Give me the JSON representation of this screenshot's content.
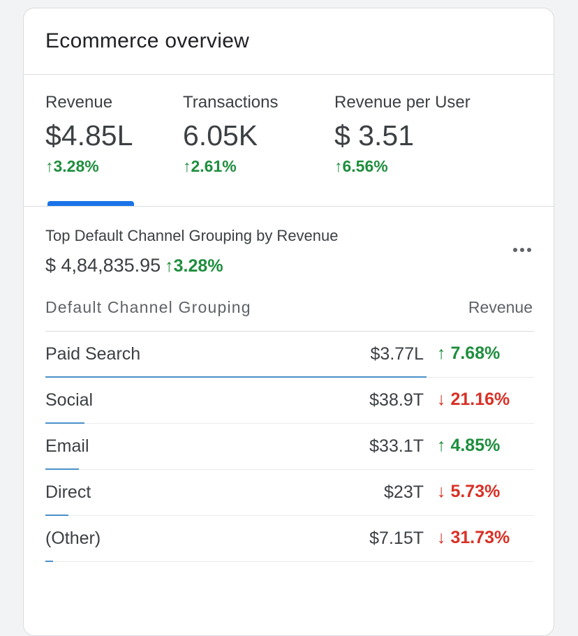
{
  "card": {
    "title": "Ecommerce overview"
  },
  "kpis": [
    {
      "label": "Revenue",
      "value": "$4.85L",
      "change": "3.28%",
      "direction": "up",
      "selected": true
    },
    {
      "label": "Transactions",
      "value": "6.05K",
      "change": "2.61%",
      "direction": "up"
    },
    {
      "label": "Revenue per User",
      "value": "$ 3.51",
      "change": "6.56%",
      "direction": "up"
    }
  ],
  "detail": {
    "title": "Top Default Channel Grouping by Revenue",
    "total": "$ 4,84,835.95",
    "total_change": "3.28%",
    "total_direction": "up",
    "more_icon": "more-horizontal-icon"
  },
  "table": {
    "col_left": "Default Channel Grouping",
    "col_right": "Revenue",
    "rows": [
      {
        "name": "Paid Search",
        "value": "$3.77L",
        "change": "7.68%",
        "direction": "up",
        "share": 0.78
      },
      {
        "name": "Social",
        "value": "$38.9T",
        "change": "21.16%",
        "direction": "down",
        "share": 0.08
      },
      {
        "name": "Email",
        "value": "$33.1T",
        "change": "4.85%",
        "direction": "up",
        "share": 0.068
      },
      {
        "name": "Direct",
        "value": "$23T",
        "change": "5.73%",
        "direction": "down",
        "share": 0.047
      },
      {
        "name": "(Other)",
        "value": "$7.15T",
        "change": "31.73%",
        "direction": "down",
        "share": 0.015
      }
    ]
  },
  "colors": {
    "up": "#1e8e3e",
    "down": "#d93025",
    "accent": "#1a73e8"
  }
}
